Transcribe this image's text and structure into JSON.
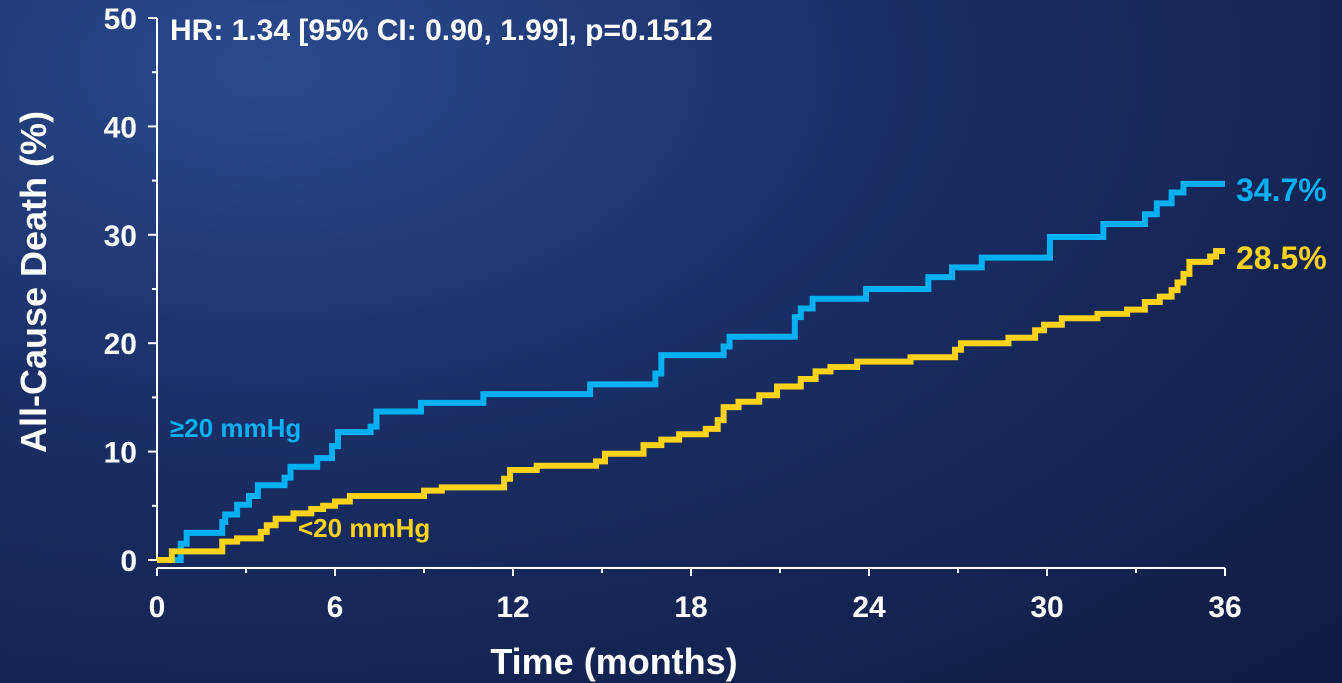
{
  "chart_data": {
    "type": "line",
    "step": true,
    "xlabel": "Time (months)",
    "ylabel": "All-Cause Death (%)",
    "xlim": [
      0,
      36
    ],
    "ylim": [
      0,
      50
    ],
    "xticks": [
      0,
      6,
      12,
      18,
      24,
      30,
      36
    ],
    "yticks": [
      0,
      10,
      20,
      30,
      40,
      50
    ],
    "grid": false,
    "annotation": "HR: 1.34 [95% CI: 0.90, 1.99], p=0.1512",
    "series": [
      {
        "name": "≥20 mmHg",
        "color": "#00b0f0",
        "end_label": "34.7%",
        "points": [
          [
            0,
            0
          ],
          [
            0.8,
            1.5
          ],
          [
            1.0,
            2.5
          ],
          [
            2.2,
            3.5
          ],
          [
            2.3,
            4.2
          ],
          [
            2.7,
            5.1
          ],
          [
            3.1,
            5.9
          ],
          [
            3.4,
            6.9
          ],
          [
            4.3,
            7.6
          ],
          [
            4.5,
            8.6
          ],
          [
            5.4,
            9.4
          ],
          [
            5.9,
            10.5
          ],
          [
            6.1,
            11.8
          ],
          [
            7.2,
            12.3
          ],
          [
            7.4,
            13.7
          ],
          [
            8.9,
            14.5
          ],
          [
            11.0,
            15.3
          ],
          [
            14.6,
            16.2
          ],
          [
            16.8,
            17.2
          ],
          [
            17.0,
            18.9
          ],
          [
            19.1,
            19.7
          ],
          [
            19.3,
            20.6
          ],
          [
            21.5,
            22.4
          ],
          [
            21.7,
            23.2
          ],
          [
            22.1,
            24.1
          ],
          [
            23.9,
            25.0
          ],
          [
            26.0,
            26.1
          ],
          [
            26.8,
            27.0
          ],
          [
            27.8,
            27.9
          ],
          [
            30.1,
            29.8
          ],
          [
            31.9,
            31.0
          ],
          [
            33.3,
            31.9
          ],
          [
            33.7,
            32.9
          ],
          [
            34.2,
            33.9
          ],
          [
            34.6,
            34.7
          ],
          [
            36.0,
            34.7
          ]
        ]
      },
      {
        "name": "<20 mmHg",
        "color": "#ffd31a",
        "end_label": "28.5%",
        "points": [
          [
            0,
            0
          ],
          [
            0.5,
            0.8
          ],
          [
            2.2,
            1.7
          ],
          [
            2.7,
            2.0
          ],
          [
            3.5,
            2.6
          ],
          [
            3.7,
            3.2
          ],
          [
            4.0,
            3.8
          ],
          [
            4.6,
            4.3
          ],
          [
            5.2,
            4.7
          ],
          [
            5.6,
            5.0
          ],
          [
            6.0,
            5.4
          ],
          [
            6.5,
            5.9
          ],
          [
            9.0,
            6.4
          ],
          [
            9.6,
            6.7
          ],
          [
            11.7,
            7.5
          ],
          [
            11.9,
            8.3
          ],
          [
            12.8,
            8.7
          ],
          [
            14.8,
            9.1
          ],
          [
            15.1,
            9.8
          ],
          [
            16.4,
            10.6
          ],
          [
            17.0,
            11.1
          ],
          [
            17.6,
            11.6
          ],
          [
            18.5,
            12.1
          ],
          [
            18.9,
            12.9
          ],
          [
            19.1,
            14.1
          ],
          [
            19.6,
            14.6
          ],
          [
            20.3,
            15.2
          ],
          [
            20.9,
            16.0
          ],
          [
            21.7,
            16.7
          ],
          [
            22.2,
            17.4
          ],
          [
            22.7,
            17.8
          ],
          [
            23.6,
            18.3
          ],
          [
            25.4,
            18.7
          ],
          [
            26.9,
            19.4
          ],
          [
            27.1,
            20.0
          ],
          [
            28.7,
            20.5
          ],
          [
            29.6,
            21.2
          ],
          [
            29.9,
            21.7
          ],
          [
            30.5,
            22.3
          ],
          [
            31.7,
            22.7
          ],
          [
            32.7,
            23.1
          ],
          [
            33.3,
            23.8
          ],
          [
            33.8,
            24.3
          ],
          [
            34.2,
            24.9
          ],
          [
            34.4,
            25.6
          ],
          [
            34.6,
            26.4
          ],
          [
            34.8,
            27.5
          ],
          [
            35.5,
            28.0
          ],
          [
            35.7,
            28.5
          ],
          [
            36.0,
            28.5
          ]
        ]
      }
    ]
  }
}
